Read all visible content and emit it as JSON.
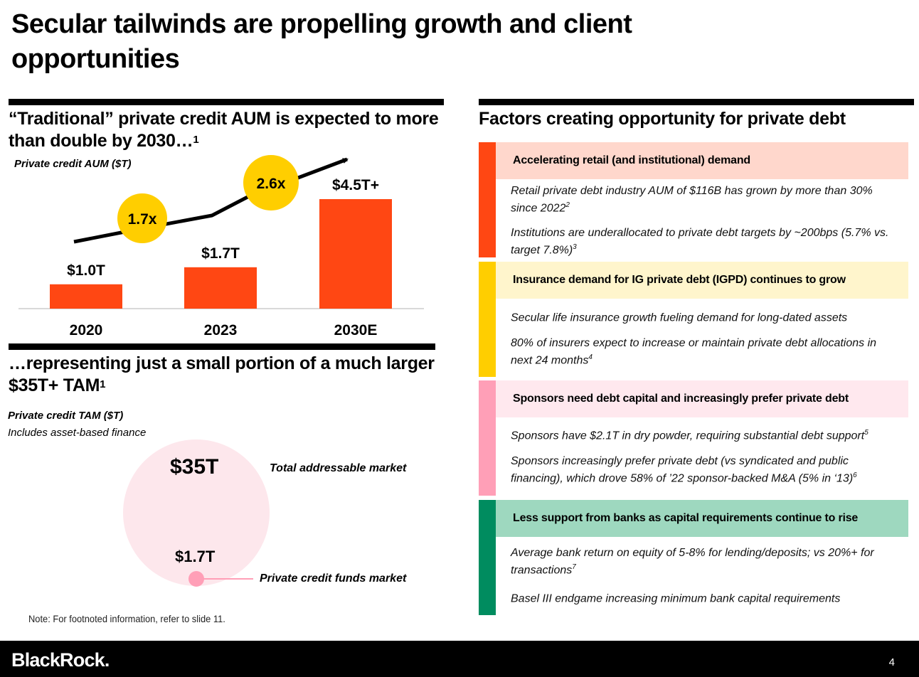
{
  "title": "Secular tailwinds are propelling growth and client opportunities",
  "left": {
    "aum_heading": "“Traditional” private credit AUM is expected to more than double by 2030…",
    "aum_heading_sup": "1",
    "aum_label": "Private credit AUM ($T)",
    "tam_heading": "…representing just a small portion of a much larger $35T+ TAM",
    "tam_heading_sup": "1",
    "tam_label": "Private credit TAM ($T)",
    "tam_sublabel": "Includes asset-based finance",
    "tam_big_value": "$35T",
    "tam_big_label": "Total addressable market",
    "tam_small_value": "$1.7T",
    "tam_small_label": "Private credit funds market",
    "note": "Note: For footnoted information, refer to slide 11."
  },
  "chart_data": {
    "type": "bar",
    "title": "Private credit AUM ($T)",
    "categories": [
      "2020",
      "2023",
      "2030E"
    ],
    "values": [
      1.0,
      1.7,
      4.5
    ],
    "data_labels": [
      "$1.0T",
      "$1.7T",
      "$4.5T+"
    ],
    "multipliers": [
      "1.7x",
      "2.6x"
    ],
    "ylim": [
      0,
      4.5
    ],
    "bar_color": "#ff4713",
    "badge_color": "#ffce00"
  },
  "right": {
    "heading": "Factors creating opportunity for private debt",
    "factors": [
      {
        "title": "Accelerating retail (and institutional) demand",
        "stripe_color": "#ff4713",
        "head_bg": "#ffd7cc",
        "bullets": [
          {
            "text": "Retail private debt industry AUM of $116B has grown by more than 30% since 2022",
            "sup": "2"
          },
          {
            "text": "Institutions are underallocated to private debt targets by ~200bps (5.7% vs. target 7.8%)",
            "sup": "3"
          }
        ]
      },
      {
        "title": "Insurance demand for IG private debt (IGPD) continues to grow",
        "stripe_color": "#ffce00",
        "head_bg": "#fff5cc",
        "bullets": [
          {
            "text": "Secular life insurance growth fueling demand for long-dated assets",
            "sup": ""
          },
          {
            "text": "80% of insurers expect to increase or maintain private debt allocations in next 24 months",
            "sup": "4"
          }
        ]
      },
      {
        "title": "Sponsors need debt capital and increasingly prefer private debt",
        "stripe_color": "#ff9fb7",
        "head_bg": "#ffe8ee",
        "bullets": [
          {
            "text": "Sponsors have $2.1T in dry powder, requiring substantial debt support",
            "sup": "5"
          },
          {
            "text": "Sponsors increasingly prefer private debt (vs syndicated and public financing), which drove 58% of ’22 sponsor-backed M&A (5% in ‘13)",
            "sup": "6"
          }
        ]
      },
      {
        "title": "Less support from banks as capital requirements continue to rise",
        "stripe_color": "#008c5f",
        "head_bg": "#9ed8bf",
        "bullets": [
          {
            "text": "Average bank return on equity of 5-8% for lending/deposits; vs 20%+ for transactions",
            "sup": "7"
          },
          {
            "text": "Basel III endgame increasing minimum bank capital requirements",
            "sup": ""
          }
        ]
      }
    ]
  },
  "footer": {
    "logo": "BlackRock.",
    "page_number": "4"
  }
}
